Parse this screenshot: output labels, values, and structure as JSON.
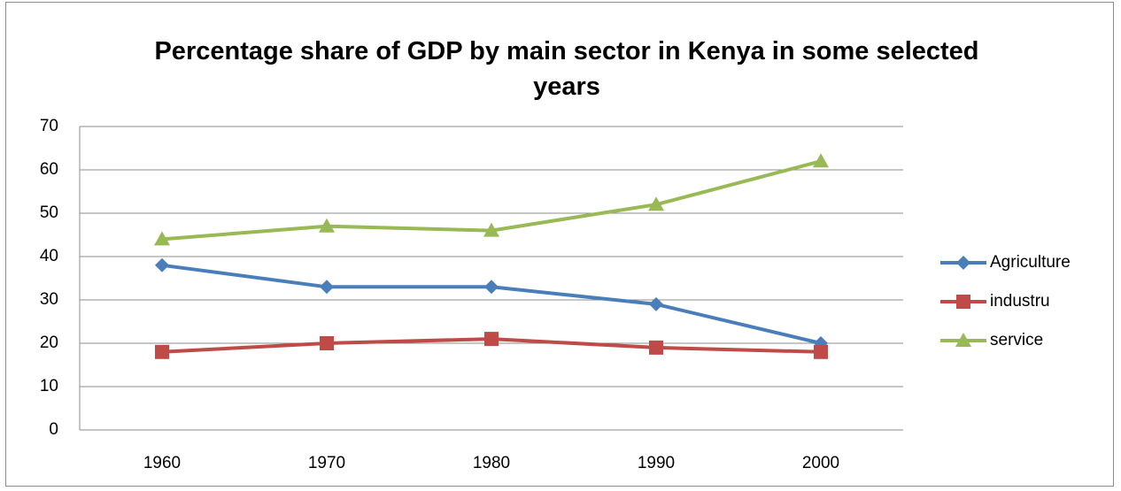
{
  "chart_data": {
    "type": "line",
    "title": "Percentage share of GDP by main sector in Kenya in some selected years",
    "categories": [
      "1960",
      "1970",
      "1980",
      "1990",
      "2000"
    ],
    "series": [
      {
        "name": "Agriculture",
        "color": "#4a7ebb",
        "marker": "diamond",
        "values": [
          38,
          33,
          33,
          29,
          20
        ]
      },
      {
        "name": "industru",
        "color": "#be4b48",
        "marker": "square",
        "values": [
          18,
          20,
          21,
          19,
          18
        ]
      },
      {
        "name": "service",
        "color": "#98b954",
        "marker": "triangle",
        "values": [
          44,
          47,
          46,
          52,
          62
        ]
      }
    ],
    "ylim": [
      0,
      70
    ],
    "yticks": [
      0,
      10,
      20,
      30,
      40,
      50,
      60,
      70
    ],
    "grid": true,
    "legend": "right"
  }
}
